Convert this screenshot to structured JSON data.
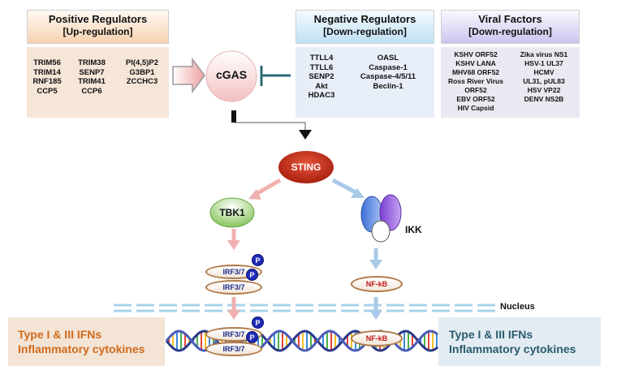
{
  "positive": {
    "title": "Positive Regulators",
    "subtitle": "[Up-regulation]",
    "col1": [
      "TRIM56",
      "TRIM14",
      "RNF185",
      "CCP5"
    ],
    "col2": [
      "TRIM38",
      "SENP7",
      "TRIM41",
      "CCP6"
    ],
    "col3": [
      "PI(4,5)P2",
      "G3BP1",
      "ZCCHC3"
    ]
  },
  "negative": {
    "title": "Negative Regulators",
    "subtitle": "[Down-regulation]",
    "col1": [
      "TTLL4",
      "TTLL6",
      "SENP2",
      "Akt",
      "HDAC3"
    ],
    "col2": [
      "OASL",
      "Caspase-1",
      "Caspase-4/5/11",
      "Beclin-1"
    ]
  },
  "viral": {
    "title": "Viral Factors",
    "subtitle": "[Down-regulation]",
    "col1": [
      "KSHV ORF52",
      "KSHV LANA",
      "MHV68 ORF52",
      "Ross River Virus",
      "ORF52",
      "EBV ORF52",
      "HIV Capsid"
    ],
    "col2": [
      "Zika virus NS1",
      "HSV-1 UL37",
      "HCMV",
      "UL31, pUL83",
      "HSV VP22",
      "DENV NS2B"
    ]
  },
  "nodes": {
    "cgas": "cGAS",
    "sting": "STING",
    "tbk1": "TBK1",
    "ikk": "IKK",
    "irf": "IRF3/7",
    "p": "P",
    "nfkb": "NF-kB",
    "nucleus": "Nucleus"
  },
  "outputs": {
    "left_line1": "Type I & III IFNs",
    "left_line2": "Inflammatory cytokines",
    "right_line1": "Type I & III IFNs",
    "right_line2": "Inflammatory cytokines"
  },
  "colors": {
    "positive_bg": "#f6e6d8",
    "negative_bg": "#e8eef7",
    "viral_bg": "#ebe8f1",
    "sting": "#c8321e",
    "left_text": "#d06a1a",
    "right_text": "#2b5a6e",
    "inhibit": "#2b6b76"
  }
}
